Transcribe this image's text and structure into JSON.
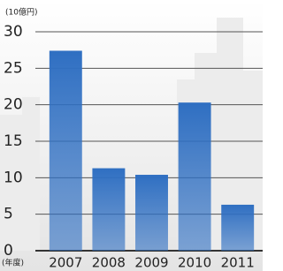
{
  "chart_data": {
    "type": "bar",
    "y_unit": "(10億円)",
    "x_unit": "(年度)",
    "categories": [
      "2007",
      "2008",
      "2009",
      "2010",
      "2011"
    ],
    "values": [
      27.4,
      11.3,
      10.4,
      20.3,
      6.3
    ],
    "color": "#2f6fc2",
    "ylim": [
      0,
      30
    ],
    "yticks": [
      0,
      5,
      10,
      15,
      20,
      25,
      30
    ],
    "grid": true
  }
}
